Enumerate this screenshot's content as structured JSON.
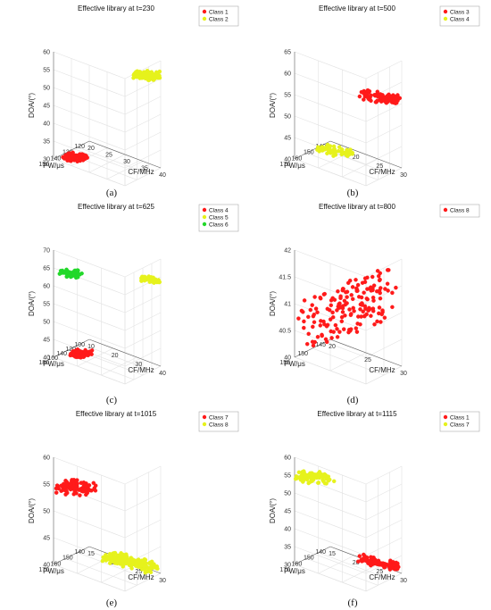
{
  "colors": {
    "red": "#ff1a1a",
    "yellow": "#e6f21c",
    "green": "#22d82a"
  },
  "chart_data": [
    {
      "type": "scatter3d",
      "caption": "(a)",
      "title": "Effective library at t=230",
      "xlabel": "CF/MHz",
      "ylabel": "PW/μs",
      "zlabel": "DOA/(°)",
      "xlim": [
        20,
        40
      ],
      "ylim": [
        120,
        150
      ],
      "zlim": [
        30,
        60
      ],
      "xticks": [
        20,
        25,
        30,
        35,
        40
      ],
      "yticks": [
        120,
        130,
        140,
        150
      ],
      "zticks": [
        30,
        35,
        40,
        45,
        50,
        55,
        60
      ],
      "legend": "top-right",
      "series": [
        {
          "name": "Class 1",
          "color": "red",
          "clusters": [
            {
              "x": [
                22,
                27
              ],
              "y": [
                142,
                149
              ],
              "z": [
                30,
                33
              ],
              "n": 90
            }
          ]
        },
        {
          "name": "Class 2",
          "color": "yellow",
          "clusters": [
            {
              "x": [
                33,
                40
              ],
              "y": [
                120,
                124
              ],
              "z": [
                53,
                57
              ],
              "n": 90
            }
          ]
        }
      ]
    },
    {
      "type": "scatter3d",
      "caption": "(b)",
      "title": "Effective library at t=500",
      "xlabel": "CF/MHz",
      "ylabel": "PW/μs",
      "zlabel": "DOA/(°)",
      "xlim": [
        15,
        30
      ],
      "ylim": [
        140,
        170
      ],
      "zlim": [
        40,
        65
      ],
      "xticks": [
        15,
        20,
        25,
        30
      ],
      "yticks": [
        140,
        150,
        160,
        170
      ],
      "zticks": [
        40,
        45,
        50,
        55,
        60,
        65
      ],
      "legend": "top-right",
      "series": [
        {
          "name": "Class 3",
          "color": "red",
          "clusters": [
            {
              "x": [
                22,
                30
              ],
              "y": [
                140,
                144
              ],
              "z": [
                53,
                57
              ],
              "n": 110
            }
          ]
        },
        {
          "name": "Class 4",
          "color": "yellow",
          "clusters": [
            {
              "x": [
                16,
                23
              ],
              "y": [
                150,
                158
              ],
              "z": [
                40,
                43
              ],
              "n": 60
            }
          ]
        }
      ]
    },
    {
      "type": "scatter3d",
      "caption": "(c)",
      "title": "Effective library at t=625",
      "xlabel": "CF/MHz",
      "ylabel": "PW/μs",
      "zlabel": "DOA/(°)",
      "xlim": [
        10,
        40
      ],
      "ylim": [
        100,
        180
      ],
      "zlim": [
        40,
        70
      ],
      "xticks": [
        10,
        20,
        30,
        40
      ],
      "yticks": [
        100,
        120,
        140,
        160,
        180
      ],
      "zticks": [
        40,
        45,
        50,
        55,
        60,
        65,
        70
      ],
      "legend": "top-right",
      "series": [
        {
          "name": "Class 4",
          "color": "red",
          "clusters": [
            {
              "x": [
                14,
                21
              ],
              "y": [
                150,
                165
              ],
              "z": [
                40,
                43
              ],
              "n": 90
            }
          ]
        },
        {
          "name": "Class 5",
          "color": "yellow",
          "clusters": [
            {
              "x": [
                32,
                40
              ],
              "y": [
                100,
                106
              ],
              "z": [
                62,
                65
              ],
              "n": 45
            }
          ]
        },
        {
          "name": "Class 6",
          "color": "green",
          "clusters": [
            {
              "x": [
                12,
                20
              ],
              "y": [
                165,
                178
              ],
              "z": [
                63,
                66
              ],
              "n": 50
            }
          ]
        }
      ]
    },
    {
      "type": "scatter3d",
      "caption": "(d)",
      "title": "Effective library at t=800",
      "xlabel": "CF/MHz",
      "ylabel": "PW/μs",
      "zlabel": "DOA/(°)",
      "xlim": [
        20,
        30
      ],
      "ylim": [
        145,
        155
      ],
      "zlim": [
        40,
        42
      ],
      "xticks": [
        20,
        25,
        30
      ],
      "yticks": [
        145,
        150,
        155
      ],
      "zticks": [
        40,
        40.5,
        41,
        41.5,
        42
      ],
      "legend": "top-right",
      "series": [
        {
          "name": "Class 8",
          "color": "red",
          "clusters": [
            {
              "x": [
                20,
                30
              ],
              "y": [
                145,
                155
              ],
              "z": [
                40,
                42
              ],
              "n": 170
            }
          ]
        }
      ]
    },
    {
      "type": "scatter3d",
      "caption": "(e)",
      "title": "Effective library at t=1015",
      "xlabel": "CF/MHz",
      "ylabel": "PW/μs",
      "zlabel": "DOA/(°)",
      "xlim": [
        15,
        30
      ],
      "ylim": [
        140,
        170
      ],
      "zlim": [
        40,
        60
      ],
      "xticks": [
        15,
        20,
        25,
        30
      ],
      "yticks": [
        140,
        150,
        160,
        170
      ],
      "zticks": [
        40,
        45,
        50,
        55,
        60
      ],
      "legend": "top-right",
      "series": [
        {
          "name": "Class 7",
          "color": "red",
          "clusters": [
            {
              "x": [
                15,
                22
              ],
              "y": [
                160,
                170
              ],
              "z": [
                53,
                57
              ],
              "n": 90
            }
          ]
        },
        {
          "name": "Class 8",
          "color": "yellow",
          "clusters": [
            {
              "x": [
                20,
                30
              ],
              "y": [
                140,
                150
              ],
              "z": [
                40,
                42
              ],
              "n": 200
            }
          ]
        }
      ]
    },
    {
      "type": "scatter3d",
      "caption": "(f)",
      "title": "Effective library at t=1115",
      "xlabel": "CF/MHz",
      "ylabel": "PW/μs",
      "zlabel": "DOA/(°)",
      "xlim": [
        15,
        30
      ],
      "ylim": [
        140,
        170
      ],
      "zlim": [
        30,
        60
      ],
      "xticks": [
        15,
        20,
        25,
        30
      ],
      "yticks": [
        140,
        150,
        160,
        170
      ],
      "zticks": [
        30,
        35,
        40,
        45,
        50,
        55,
        60
      ],
      "legend": "top-right",
      "series": [
        {
          "name": "Class 1",
          "color": "red",
          "clusters": [
            {
              "x": [
                22,
                30
              ],
              "y": [
                140,
                146
              ],
              "z": [
                30,
                33
              ],
              "n": 100
            }
          ]
        },
        {
          "name": "Class 7",
          "color": "yellow",
          "clusters": [
            {
              "x": [
                15,
                22
              ],
              "y": [
                163,
                170
              ],
              "z": [
                53,
                58
              ],
              "n": 80
            }
          ]
        }
      ]
    }
  ]
}
